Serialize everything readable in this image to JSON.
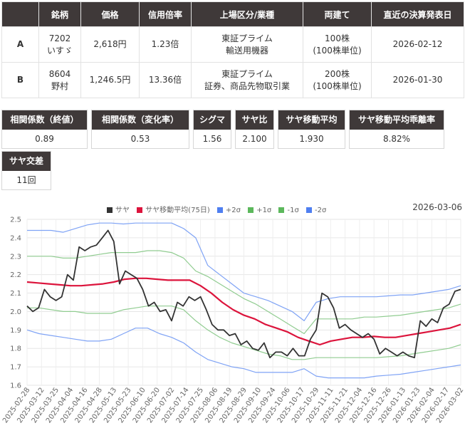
{
  "pair_table": {
    "headers": [
      "",
      "銘柄",
      "価格",
      "信用倍率",
      "上場区分/業種",
      "両建て",
      "直近の決算発表日"
    ],
    "rows": [
      {
        "label": "A",
        "code": "7202",
        "name": "いすゞ",
        "price": "2,618円",
        "margin_ratio": "1.23倍",
        "market": "東証プライム",
        "industry": "輸送用機器",
        "hedge": "100株",
        "hedge_unit": "(100株単位)",
        "earnings_date": "2026-02-12"
      },
      {
        "label": "B",
        "code": "8604",
        "name": "野村",
        "price": "1,246.5円",
        "margin_ratio": "13.36倍",
        "market": "東証プライム",
        "industry": "証券、商品先物取引業",
        "hedge": "200株",
        "hedge_unit": "(100株単位)",
        "earnings_date": "2026-01-30"
      }
    ]
  },
  "stats": [
    {
      "label": "相関係数（終値）",
      "value": "0.89"
    },
    {
      "label": "相関係数（変化率）",
      "value": "0.53"
    },
    {
      "label": "シグマ",
      "value": "1.56"
    },
    {
      "label": "サヤ比",
      "value": "2.100"
    },
    {
      "label": "サヤ移動平均",
      "value": "1.930"
    },
    {
      "label": "サヤ移動平均乖離率",
      "value": "8.82%"
    },
    {
      "label": "サヤ交差",
      "value": "11回"
    }
  ],
  "chart_date": "2026-03-06",
  "chart_data": {
    "type": "line",
    "ylim": [
      1.6,
      2.5
    ],
    "y_ticks": [
      "2.5",
      "2.4",
      "2.3",
      "2.2",
      "2.1",
      "2.0",
      "1.9",
      "1.8",
      "1.7",
      "1.6"
    ],
    "grid": true,
    "legend_position": "top",
    "x_labels": [
      "2025-02-28",
      "2025-03-12",
      "2025-03-25",
      "2025-04-04",
      "2025-04-16",
      "2025-04-28",
      "2025-05-13",
      "2025-05-23",
      "2025-06-10",
      "2025-06-20",
      "2025-07-02",
      "2025-07-14",
      "2025-07-25",
      "2025-08-06",
      "2025-08-19",
      "2025-08-29",
      "2025-09-10",
      "2025-09-24",
      "2025-10-06",
      "2025-10-17",
      "2025-10-29",
      "2025-11-11",
      "2025-11-21",
      "2025-12-04",
      "2025-12-16",
      "2025-12-26",
      "2026-01-13",
      "2026-01-23",
      "2026-02-04",
      "2026-02-17",
      "2026-03-02"
    ],
    "series": [
      {
        "name": "サヤ",
        "color": "#333333",
        "width": 1.8,
        "values": [
          2.03,
          2.0,
          2.02,
          2.12,
          2.08,
          2.06,
          2.08,
          2.2,
          2.17,
          2.35,
          2.33,
          2.35,
          2.36,
          2.4,
          2.44,
          2.38,
          2.15,
          2.22,
          2.2,
          2.18,
          2.12,
          2.03,
          2.05,
          2.0,
          2.01,
          1.95,
          2.05,
          2.03,
          2.08,
          2.06,
          2.08,
          2.01,
          1.93,
          1.9,
          1.9,
          1.87,
          1.88,
          1.82,
          1.84,
          1.8,
          1.79,
          1.83,
          1.75,
          1.78,
          1.78,
          1.76,
          1.8,
          1.76,
          1.76,
          1.85,
          1.9,
          2.1,
          2.08,
          2.02,
          1.91,
          1.93,
          1.9,
          1.88,
          1.86,
          1.88,
          1.85,
          1.77,
          1.8,
          1.78,
          1.76,
          1.78,
          1.76,
          1.75,
          1.95,
          1.92,
          1.96,
          1.94,
          2.02,
          2.04,
          2.11,
          2.12
        ]
      },
      {
        "name": "サヤ移動平均(75日)",
        "color": "#dc143c",
        "width": 2.2,
        "values": [
          2.16,
          2.155,
          2.15,
          2.145,
          2.14,
          2.14,
          2.145,
          2.15,
          2.16,
          2.175,
          2.18,
          2.18,
          2.175,
          2.17,
          2.17,
          2.17,
          2.14,
          2.1,
          2.05,
          2.01,
          1.98,
          1.96,
          1.93,
          1.91,
          1.89,
          1.86,
          1.84,
          1.82,
          1.84,
          1.85,
          1.86,
          1.86,
          1.865,
          1.86,
          1.86,
          1.87,
          1.88,
          1.89,
          1.9,
          1.91,
          1.93
        ]
      },
      {
        "name": "+2σ",
        "color": "#7fa3f5",
        "width": 1.2,
        "values": [
          2.44,
          2.44,
          2.44,
          2.43,
          2.45,
          2.47,
          2.48,
          2.48,
          2.475,
          2.48,
          2.48,
          2.48,
          2.48,
          2.45,
          2.4,
          2.25,
          2.2,
          2.15,
          2.1,
          2.08,
          2.06,
          2.03,
          2.0,
          1.95,
          2.05,
          2.07,
          2.08,
          2.08,
          2.08,
          2.08,
          2.085,
          2.09,
          2.09,
          2.1,
          2.11,
          2.12,
          2.14
        ]
      },
      {
        "name": "+1σ",
        "color": "#90cc90",
        "width": 1.2,
        "values": [
          2.3,
          2.3,
          2.3,
          2.29,
          2.29,
          2.3,
          2.31,
          2.32,
          2.32,
          2.32,
          2.33,
          2.33,
          2.32,
          2.29,
          2.22,
          2.19,
          2.15,
          2.11,
          2.07,
          2.04,
          2.0,
          1.96,
          1.92,
          1.88,
          1.96,
          1.96,
          1.96,
          1.96,
          1.97,
          1.97,
          1.975,
          1.98,
          1.99,
          2.0,
          2.01,
          2.02,
          2.04
        ]
      },
      {
        "name": "-1σ",
        "color": "#90cc90",
        "width": 1.2,
        "values": [
          2.02,
          2.02,
          2.01,
          2.0,
          2.0,
          1.99,
          1.99,
          1.99,
          2.01,
          2.02,
          2.03,
          2.03,
          2.03,
          2.01,
          1.95,
          1.9,
          1.86,
          1.83,
          1.81,
          1.79,
          1.77,
          1.76,
          1.74,
          1.74,
          1.75,
          1.75,
          1.75,
          1.75,
          1.75,
          1.75,
          1.755,
          1.76,
          1.77,
          1.78,
          1.79,
          1.8,
          1.82
        ]
      },
      {
        "name": "-2σ",
        "color": "#7fa3f5",
        "width": 1.2,
        "values": [
          1.9,
          1.88,
          1.87,
          1.86,
          1.85,
          1.84,
          1.84,
          1.85,
          1.88,
          1.91,
          1.91,
          1.88,
          1.86,
          1.83,
          1.78,
          1.74,
          1.72,
          1.7,
          1.69,
          1.67,
          1.67,
          1.67,
          1.67,
          1.69,
          1.65,
          1.64,
          1.64,
          1.64,
          1.64,
          1.65,
          1.655,
          1.66,
          1.67,
          1.68,
          1.69,
          1.7,
          1.71
        ]
      }
    ]
  }
}
